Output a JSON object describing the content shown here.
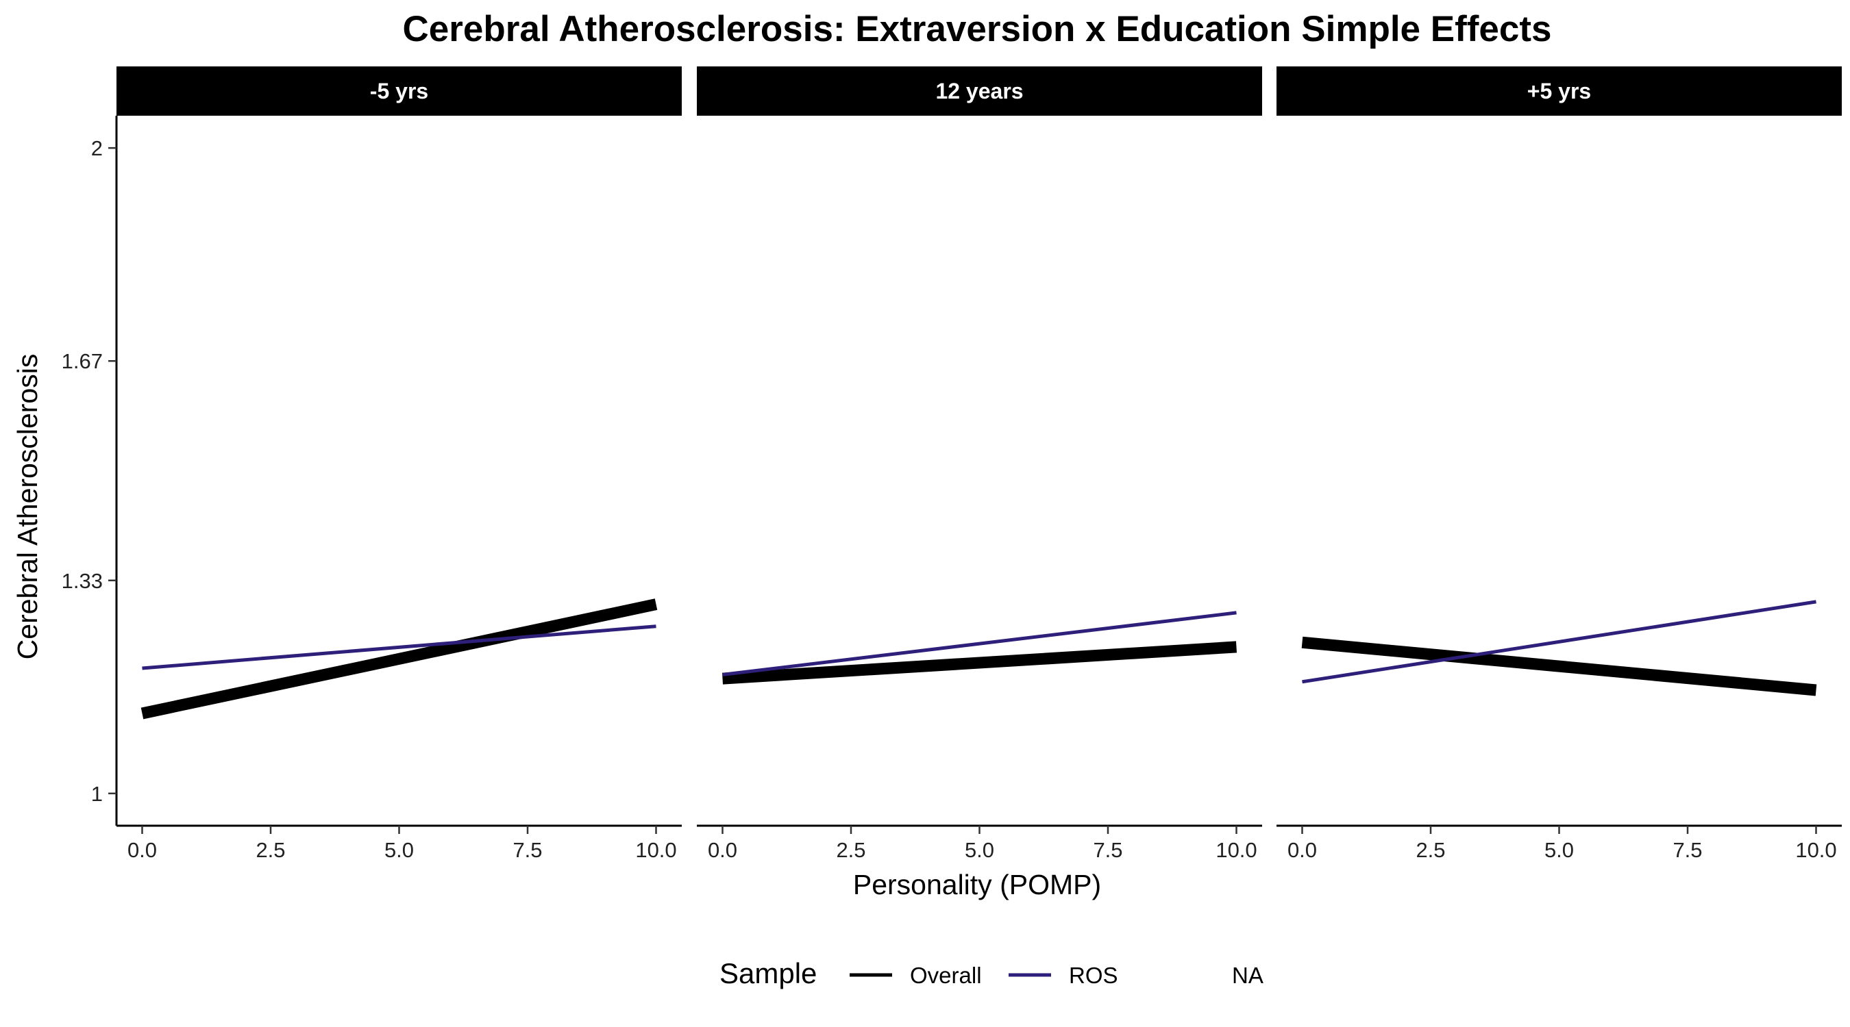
{
  "chart_data": {
    "type": "line",
    "title": "Cerebral Atherosclerosis: Extraversion x Education Simple Effects",
    "xlabel": "Personality (POMP)",
    "ylabel": "Cerebral Atherosclerosis",
    "xlim": [
      -0.5,
      10.5
    ],
    "ylim": [
      0.95,
      2.05
    ],
    "x_ticks": [
      0,
      2.5,
      5,
      7.5,
      10
    ],
    "x_tick_labels": [
      "0.0",
      "2.5",
      "5.0",
      "7.5",
      "10.0"
    ],
    "y_ticks": [
      1,
      1.33,
      1.67,
      2
    ],
    "y_tick_labels": [
      "1",
      "1.33",
      "1.67",
      "2"
    ],
    "grid": false,
    "legend": {
      "title": "Sample",
      "position": "bottom",
      "entries": [
        {
          "label": "Overall",
          "color": "#000000"
        },
        {
          "label": "ROS",
          "color": "#2e1f7a"
        },
        {
          "label": "NA",
          "color": ""
        }
      ]
    },
    "panels": [
      {
        "label": "-5 yrs",
        "series": [
          {
            "name": "Overall",
            "x": [
              0,
              10
            ],
            "y": [
              1.124,
              1.293
            ],
            "color": "#000000"
          },
          {
            "name": "ROS",
            "x": [
              0,
              10
            ],
            "y": [
              1.194,
              1.259
            ],
            "color": "#2e1f7a"
          }
        ]
      },
      {
        "label": "12 years",
        "series": [
          {
            "name": "Overall",
            "x": [
              0,
              10
            ],
            "y": [
              1.178,
              1.227
            ],
            "color": "#000000"
          },
          {
            "name": "ROS",
            "x": [
              0,
              10
            ],
            "y": [
              1.184,
              1.28
            ],
            "color": "#2e1f7a"
          }
        ]
      },
      {
        "label": "+5 yrs",
        "series": [
          {
            "name": "Overall",
            "x": [
              0,
              10
            ],
            "y": [
              1.234,
              1.16
            ],
            "color": "#000000"
          },
          {
            "name": "ROS",
            "x": [
              0,
              10
            ],
            "y": [
              1.173,
              1.297
            ],
            "color": "#2e1f7a"
          }
        ]
      }
    ]
  }
}
